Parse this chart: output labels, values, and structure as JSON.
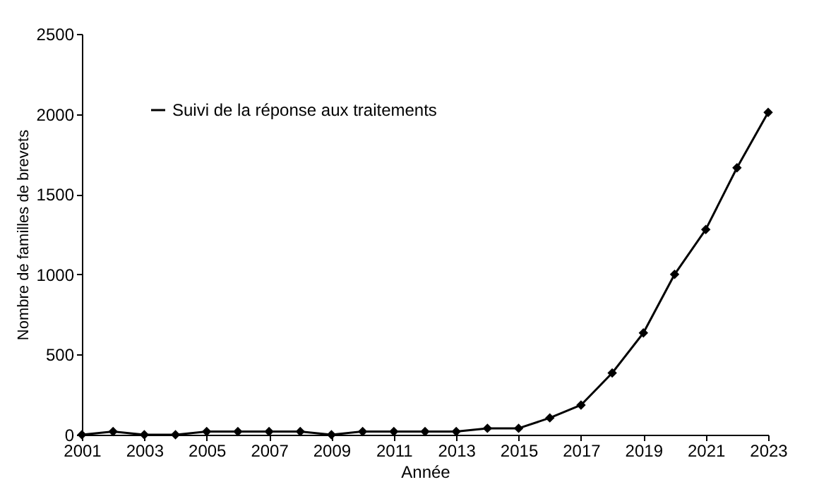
{
  "chart_data": {
    "type": "line",
    "xlabel": "Année",
    "ylabel": "Nombre de familles de brevets",
    "x": [
      2001,
      2002,
      2003,
      2004,
      2005,
      2006,
      2007,
      2008,
      2009,
      2010,
      2011,
      2012,
      2013,
      2014,
      2015,
      2016,
      2017,
      2018,
      2019,
      2020,
      2021,
      2022,
      2023
    ],
    "series": [
      {
        "name": "Suivi de la réponse aux traitements",
        "color": "#000000",
        "values": [
          0,
          20,
          0,
          0,
          20,
          20,
          20,
          20,
          0,
          20,
          20,
          20,
          20,
          40,
          40,
          105,
          185,
          385,
          635,
          1000,
          1280,
          1665,
          2010
        ]
      }
    ],
    "xlim": [
      2001,
      2023
    ],
    "xticks": [
      2001,
      2003,
      2005,
      2007,
      2009,
      2011,
      2013,
      2015,
      2017,
      2019,
      2021,
      2023
    ],
    "ylim": [
      0,
      2500
    ],
    "yticks": [
      0,
      500,
      1000,
      1500,
      2000,
      2500
    ],
    "grid": false,
    "legend": "top left",
    "marker": "diamond",
    "line_style": "solid"
  }
}
